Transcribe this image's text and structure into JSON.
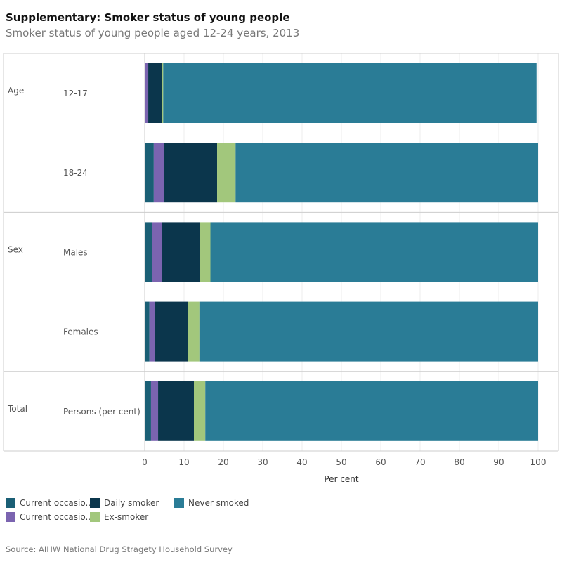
{
  "title": "Supplementary: Smoker status of young people",
  "subtitle": "Smoker status of young people aged 12-24 years, 2013",
  "source": "Source: AIHW National Drug Stragety Household Survey",
  "chart_data": {
    "type": "bar",
    "orientation": "horizontal-stacked",
    "xlabel": "Per cent",
    "xlim": [
      0,
      100
    ],
    "xticks": [
      0,
      10,
      20,
      30,
      40,
      50,
      60,
      70,
      80,
      90,
      100
    ],
    "groups": [
      {
        "label": "Age",
        "rows": [
          "12-17",
          "18-24"
        ]
      },
      {
        "label": "Sex",
        "rows": [
          "Males",
          "Females"
        ]
      },
      {
        "label": "Total",
        "rows": [
          "Persons (per cent)"
        ]
      }
    ],
    "categories": [
      "12-17",
      "18-24",
      "Males",
      "Females",
      "Persons (per cent)"
    ],
    "series": [
      {
        "name": "Current occasio..",
        "color": "#1a5f75",
        "values": [
          0,
          2.3,
          1.8,
          1.2,
          1.6
        ]
      },
      {
        "name": "Current occasio..",
        "color": "#7b64b0",
        "values": [
          0.9,
          2.7,
          2.5,
          1.3,
          1.8
        ]
      },
      {
        "name": "Daily smoker",
        "color": "#0b364c",
        "values": [
          3.4,
          13.4,
          9.7,
          8.4,
          9.1
        ]
      },
      {
        "name": "Ex-smoker",
        "color": "#a2c77c",
        "values": [
          0.4,
          4.7,
          2.7,
          3.0,
          2.9
        ]
      },
      {
        "name": "Never smoked",
        "color": "#2a7c96",
        "values": [
          94.9,
          76.9,
          83.3,
          86.1,
          84.6
        ]
      }
    ],
    "grid": true,
    "legend": "bottom-left"
  }
}
